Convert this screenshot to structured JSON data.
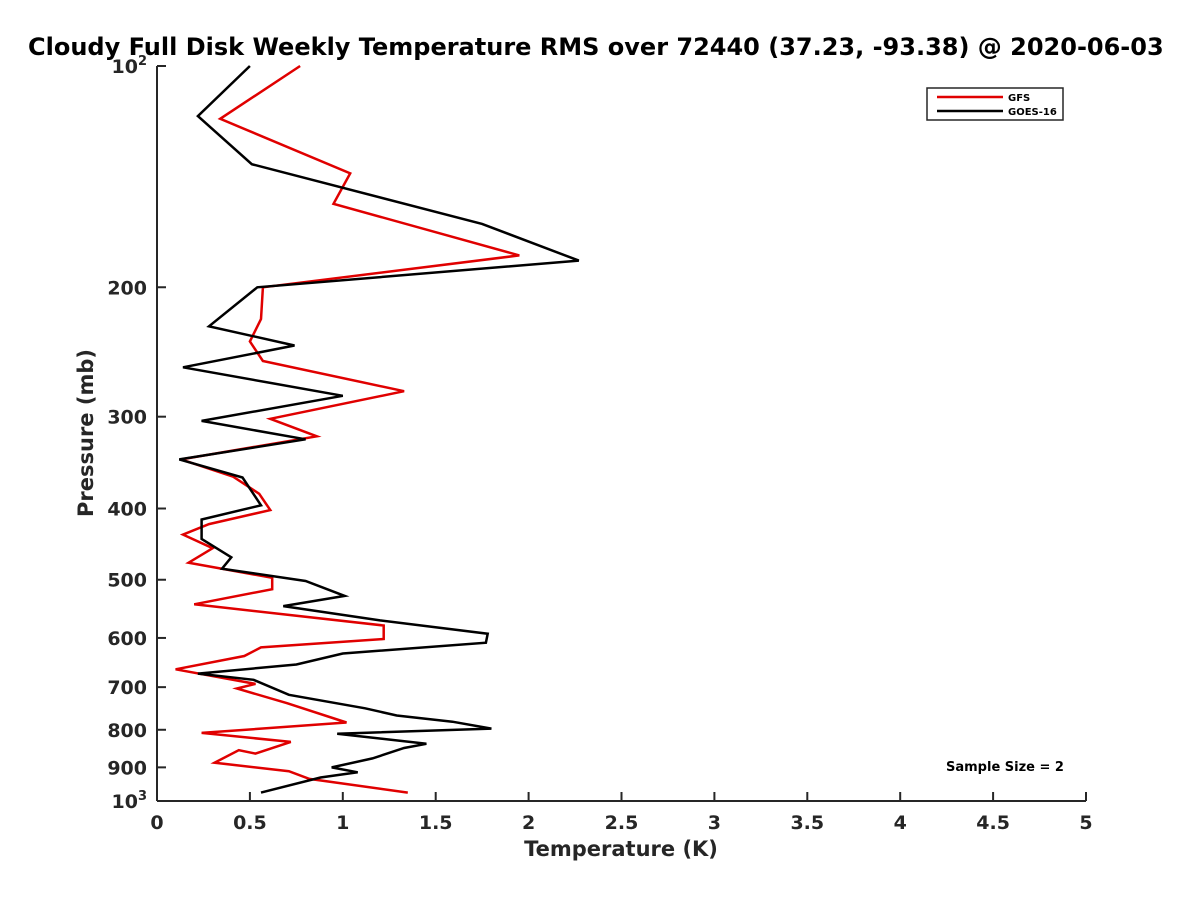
{
  "chart_data": {
    "type": "line",
    "title": "Cloudy Full Disk Weekly Temperature RMS over 72440 (37.23, -93.38) @ 2020-06-03",
    "xlabel": "Temperature (K)",
    "ylabel": "Pressure (mb)",
    "xlim": [
      0,
      5
    ],
    "ylim": [
      100,
      1000
    ],
    "y_scale": "log",
    "y_reversed": true,
    "grid": false,
    "x_ticks": [
      "0",
      "0.5",
      "1",
      "1.5",
      "2",
      "2.5",
      "3",
      "3.5",
      "4",
      "4.5",
      "5"
    ],
    "y_ticks": [
      {
        "value": 100,
        "label": "10",
        "sup": "2"
      },
      {
        "value": 200,
        "label": "200"
      },
      {
        "value": 300,
        "label": "300"
      },
      {
        "value": 400,
        "label": "400"
      },
      {
        "value": 500,
        "label": "500"
      },
      {
        "value": 600,
        "label": "600"
      },
      {
        "value": 700,
        "label": "700"
      },
      {
        "value": 800,
        "label": "800"
      },
      {
        "value": 900,
        "label": "900"
      },
      {
        "value": 1000,
        "label": "10",
        "sup": "3"
      }
    ],
    "legend_position": "top-right",
    "annotation": "Sample Size = 2",
    "series": [
      {
        "name": "GFS",
        "color": "#e00000",
        "points": [
          [
            0.77,
            100
          ],
          [
            0.34,
            118
          ],
          [
            1.04,
            140
          ],
          [
            0.95,
            154
          ],
          [
            1.95,
            181
          ],
          [
            0.57,
            200
          ],
          [
            0.56,
            221
          ],
          [
            0.5,
            237
          ],
          [
            0.57,
            252
          ],
          [
            1.33,
            277
          ],
          [
            0.61,
            302
          ],
          [
            0.86,
            319
          ],
          [
            0.13,
            343
          ],
          [
            0.41,
            362
          ],
          [
            0.55,
            382
          ],
          [
            0.61,
            402
          ],
          [
            0.28,
            420
          ],
          [
            0.14,
            434
          ],
          [
            0.3,
            453
          ],
          [
            0.17,
            474
          ],
          [
            0.62,
            497
          ],
          [
            0.62,
            515
          ],
          [
            0.2,
            540
          ],
          [
            1.22,
            577
          ],
          [
            1.22,
            602
          ],
          [
            0.56,
            618
          ],
          [
            0.47,
            635
          ],
          [
            0.1,
            662
          ],
          [
            0.53,
            693
          ],
          [
            0.43,
            703
          ],
          [
            0.7,
            736
          ],
          [
            1.02,
            782
          ],
          [
            0.24,
            808
          ],
          [
            0.72,
            831
          ],
          [
            0.53,
            862
          ],
          [
            0.44,
            853
          ],
          [
            0.31,
            887
          ],
          [
            0.71,
            911
          ],
          [
            0.82,
            933
          ],
          [
            1.35,
            974
          ]
        ]
      },
      {
        "name": "GOES-16",
        "color": "#000000",
        "points": [
          [
            0.5,
            100
          ],
          [
            0.22,
            117
          ],
          [
            0.51,
            136
          ],
          [
            1.75,
            164
          ],
          [
            2.27,
            184
          ],
          [
            0.54,
            200
          ],
          [
            0.28,
            226
          ],
          [
            0.74,
            240
          ],
          [
            0.14,
            257
          ],
          [
            1.0,
            281
          ],
          [
            0.24,
            304
          ],
          [
            0.8,
            322
          ],
          [
            0.12,
            343
          ],
          [
            0.46,
            363
          ],
          [
            0.56,
            396
          ],
          [
            0.24,
            414
          ],
          [
            0.24,
            440
          ],
          [
            0.4,
            466
          ],
          [
            0.35,
            483
          ],
          [
            0.8,
            502
          ],
          [
            1.01,
            526
          ],
          [
            0.68,
            543
          ],
          [
            1.2,
            568
          ],
          [
            1.78,
            592
          ],
          [
            1.77,
            609
          ],
          [
            1.0,
            630
          ],
          [
            0.75,
            652
          ],
          [
            0.22,
            671
          ],
          [
            0.52,
            684
          ],
          [
            0.71,
            717
          ],
          [
            1.12,
            748
          ],
          [
            1.29,
            765
          ],
          [
            1.59,
            780
          ],
          [
            1.8,
            797
          ],
          [
            0.97,
            810
          ],
          [
            1.45,
            836
          ],
          [
            1.33,
            847
          ],
          [
            1.16,
            875
          ],
          [
            0.94,
            900
          ],
          [
            1.08,
            914
          ],
          [
            0.88,
            929
          ],
          [
            0.56,
            974
          ]
        ]
      }
    ]
  }
}
